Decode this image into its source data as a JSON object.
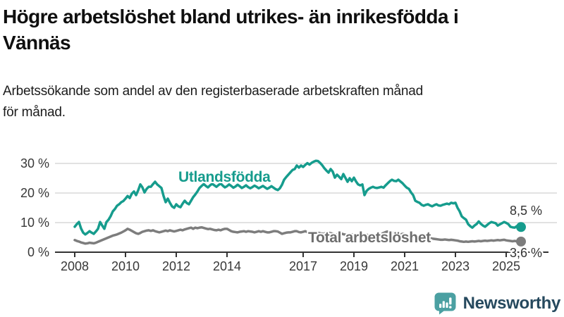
{
  "header": {
    "title_lines": [
      "Högre arbetslöshet bland utrikes- än inrikesfödda i",
      "Vännäs"
    ],
    "subtitle_lines": [
      "Arbetssökande som andel av den registerbaserade arbetskraften månad",
      "för månad."
    ]
  },
  "chart_data": {
    "type": "line",
    "title": "Högre arbetslöshet bland utrikes- än inrikesfödda i Vännäs",
    "subtitle": "Arbetssökande som andel av den registerbaserade arbetskraften månad för månad.",
    "x_unit": "month",
    "x_start": "2008-01",
    "x_end": "2025-08",
    "x_tick_labels": [
      "2008",
      "2010",
      "2012",
      "2014",
      "2017",
      "2019",
      "2021",
      "2023",
      "2025"
    ],
    "x_tick_years": [
      2008,
      2010,
      2012,
      2014,
      2017,
      2019,
      2021,
      2023,
      2025
    ],
    "y_tick_labels": [
      "0 %",
      "10 %",
      "20 %",
      "30 %"
    ],
    "y_tick_values": [
      0,
      10,
      20,
      30
    ],
    "ylim": [
      0,
      33
    ],
    "grid": "horizontal",
    "legend_position": "inline-labels",
    "axis_text_color": "#383838",
    "grid_color": "#d9d9d9",
    "series": [
      {
        "name": "Utlandsfödda",
        "color": "#169c8d",
        "label_color": "#169c8d",
        "end_label": "8,5 %",
        "end_value": 8.5,
        "values": [
          8.6,
          9.5,
          10.2,
          8.0,
          6.6,
          6.0,
          6.5,
          7.1,
          6.6,
          6.2,
          7.0,
          7.9,
          10.2,
          9.0,
          7.9,
          10.2,
          11.0,
          12.2,
          13.8,
          14.6,
          15.7,
          16.2,
          16.9,
          17.3,
          18.1,
          19.0,
          18.3,
          19.8,
          20.5,
          19.3,
          20.9,
          22.9,
          21.9,
          20.2,
          21.4,
          22.1,
          22.1,
          23.0,
          23.8,
          22.9,
          22.3,
          21.7,
          19.0,
          16.9,
          18.1,
          16.7,
          15.5,
          15.0,
          16.2,
          15.5,
          15.2,
          16.4,
          17.4,
          16.6,
          16.2,
          17.4,
          18.6,
          19.5,
          20.5,
          21.7,
          22.4,
          23.0,
          22.4,
          21.9,
          22.6,
          23.1,
          22.6,
          22.1,
          22.7,
          23.2,
          22.5,
          21.9,
          22.3,
          22.9,
          22.4,
          21.8,
          22.2,
          22.8,
          22.3,
          21.7,
          22.1,
          22.6,
          22.0,
          21.6,
          22.0,
          22.5,
          22.1,
          21.6,
          22.0,
          22.4,
          21.9,
          21.4,
          21.8,
          22.3,
          21.8,
          21.3,
          21.0,
          21.6,
          22.8,
          24.5,
          25.4,
          26.2,
          27.0,
          27.8,
          28.1,
          29.3,
          28.6,
          29.3,
          28.8,
          29.5,
          30.1,
          29.6,
          30.2,
          30.6,
          30.9,
          30.8,
          30.2,
          29.4,
          28.4,
          27.6,
          26.9,
          28.1,
          27.2,
          25.2,
          26.2,
          25.5,
          24.7,
          26.4,
          25.1,
          23.8,
          25.0,
          24.0,
          25.2,
          23.9,
          22.9,
          22.6,
          22.9,
          19.3,
          20.7,
          21.4,
          21.8,
          22.1,
          21.8,
          21.7,
          21.9,
          22.1,
          21.8,
          22.6,
          23.3,
          24.0,
          24.5,
          24.1,
          24.0,
          24.5,
          23.9,
          23.3,
          22.5,
          21.8,
          21.4,
          20.2,
          19.3,
          17.4,
          17.0,
          16.7,
          16.0,
          15.7,
          16.0,
          16.2,
          15.8,
          15.5,
          15.9,
          16.2,
          15.8,
          15.7,
          16.0,
          16.2,
          16.4,
          16.2,
          16.7,
          16.5,
          16.7,
          15.0,
          13.8,
          12.1,
          11.5,
          11.0,
          9.5,
          8.8,
          8.3,
          9.0,
          9.5,
          10.4,
          9.6,
          9.0,
          8.6,
          9.2,
          9.8,
          10.2,
          10.0,
          9.8,
          9.0,
          9.4,
          9.8,
          10.2,
          9.9,
          9.5,
          8.6,
          8.4,
          8.3,
          8.8,
          8.3,
          8.5
        ]
      },
      {
        "name": "Total arbetslöshet",
        "color": "#7d7d7d",
        "label_color": "#6e6e6e",
        "end_label": "3,6 %",
        "end_value": 3.6,
        "values": [
          4.1,
          3.8,
          3.6,
          3.3,
          3.1,
          2.9,
          3.0,
          3.2,
          3.1,
          3.0,
          3.2,
          3.5,
          3.8,
          4.1,
          4.4,
          4.7,
          5.0,
          5.3,
          5.6,
          5.8,
          6.0,
          6.3,
          6.6,
          7.0,
          7.4,
          7.9,
          7.6,
          7.2,
          6.8,
          6.4,
          6.2,
          6.5,
          6.9,
          7.1,
          7.3,
          7.4,
          7.2,
          7.4,
          7.1,
          6.9,
          6.7,
          6.9,
          7.1,
          7.3,
          7.1,
          7.4,
          7.2,
          7.0,
          7.2,
          7.4,
          7.6,
          7.4,
          7.7,
          7.9,
          8.1,
          8.3,
          7.9,
          8.3,
          8.1,
          8.3,
          8.4,
          8.2,
          8.0,
          7.8,
          7.9,
          7.7,
          7.5,
          7.4,
          7.6,
          7.4,
          7.7,
          7.9,
          7.9,
          7.5,
          7.1,
          6.9,
          6.8,
          6.7,
          6.9,
          7.0,
          7.1,
          6.9,
          7.1,
          7.0,
          6.9,
          6.7,
          6.9,
          7.1,
          6.9,
          7.1,
          6.9,
          6.7,
          6.7,
          6.9,
          7.1,
          7.1,
          7.0,
          6.6,
          6.2,
          6.4,
          6.6,
          6.7,
          6.7,
          6.9,
          7.1,
          7.1,
          6.8,
          6.7,
          6.9,
          7.1,
          6.8,
          6.6,
          6.4,
          6.6,
          6.8,
          6.6,
          6.4,
          6.2,
          6.3,
          6.5,
          6.6,
          6.4,
          6.2,
          6.0,
          5.9,
          6.1,
          6.3,
          6.1,
          5.9,
          5.7,
          5.8,
          6.0,
          6.1,
          5.9,
          5.7,
          5.6,
          5.5,
          5.7,
          5.9,
          5.7,
          5.5,
          5.4,
          5.5,
          5.7,
          5.9,
          6.2,
          6.5,
          6.8,
          7.0,
          6.9,
          6.7,
          6.5,
          6.3,
          6.1,
          6.0,
          6.2,
          6.1,
          5.9,
          5.7,
          5.5,
          5.3,
          5.1,
          4.9,
          4.8,
          4.7,
          4.6,
          4.7,
          4.8,
          4.7,
          4.6,
          4.5,
          4.4,
          4.3,
          4.2,
          4.2,
          4.3,
          4.2,
          4.1,
          4.2,
          4.1,
          4.0,
          3.9,
          3.7,
          3.6,
          3.5,
          3.6,
          3.5,
          3.6,
          3.7,
          3.6,
          3.7,
          3.8,
          3.7,
          3.8,
          3.9,
          3.8,
          3.9,
          4.0,
          3.9,
          4.0,
          4.1,
          4.0,
          4.1,
          4.2,
          4.0,
          3.9,
          3.8,
          3.7,
          3.8,
          3.7,
          3.6,
          3.6
        ]
      }
    ]
  },
  "footer": {
    "brand": "Newsworthy",
    "logo_color": "#4ba0a2",
    "brand_text_color": "#26495e",
    "logo_icon": "bar-chart-speech-bubble-icon"
  }
}
